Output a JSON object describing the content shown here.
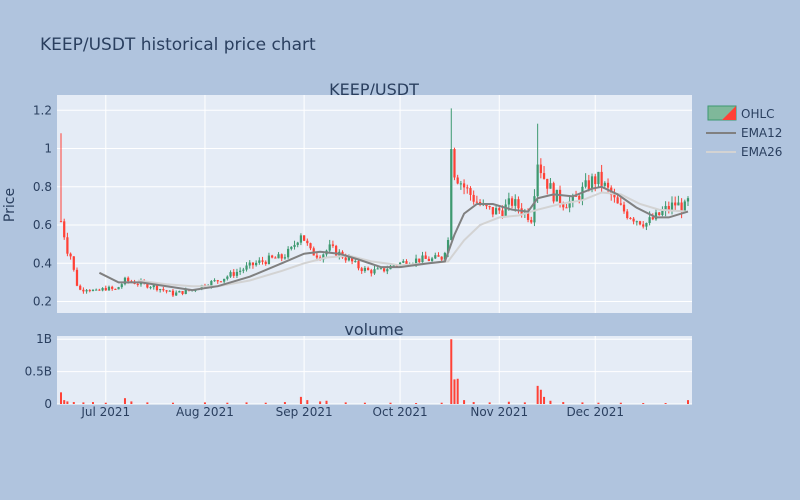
{
  "title": "KEEP/USDT historical price chart",
  "chart_data": [
    {
      "type": "candlestick",
      "subplot_title": "KEEP/USDT",
      "ylabel": "Price",
      "ylim": [
        0.14,
        1.28
      ],
      "y_ticks": [
        0.2,
        0.4,
        0.6,
        0.8,
        1,
        1.2
      ],
      "y_tick_labels": [
        "0.2",
        "0.4",
        "0.6",
        "0.8",
        "1",
        "1.2"
      ],
      "x_range": [
        "2021-06-17",
        "2021-12-30"
      ],
      "x_ticks": [
        "2021-07-01",
        "2021-08-01",
        "2021-09-01",
        "2021-10-01",
        "2021-11-01",
        "2021-12-01"
      ],
      "x_tick_labels": [
        "Jul 2021",
        "Aug 2021",
        "Sep 2021",
        "Oct 2021",
        "Nov 2021",
        "Dec 2021"
      ],
      "grid": true,
      "legend_position": "top-right",
      "colors": {
        "increasing": "#3d9970",
        "decreasing": "#ff4136",
        "ema12": "#808080",
        "ema26": "#d3d3d3"
      },
      "series": [
        {
          "name": "OHLC",
          "kind": "ohlc"
        },
        {
          "name": "EMA12",
          "kind": "line"
        },
        {
          "name": "EMA26",
          "kind": "line"
        }
      ],
      "daily_close": [
        [
          "2021-06-17",
          0.62
        ],
        [
          "2021-06-18",
          0.55
        ],
        [
          "2021-06-19",
          0.47
        ],
        [
          "2021-06-20",
          0.44
        ],
        [
          "2021-06-21",
          0.36
        ],
        [
          "2021-06-22",
          0.29
        ],
        [
          "2021-06-23",
          0.26
        ],
        [
          "2021-06-25",
          0.27
        ],
        [
          "2021-06-28",
          0.25
        ],
        [
          "2021-07-01",
          0.27
        ],
        [
          "2021-07-04",
          0.26
        ],
        [
          "2021-07-07",
          0.31
        ],
        [
          "2021-07-10",
          0.3
        ],
        [
          "2021-07-13",
          0.29
        ],
        [
          "2021-07-16",
          0.28
        ],
        [
          "2021-07-19",
          0.26
        ],
        [
          "2021-07-22",
          0.24
        ],
        [
          "2021-07-25",
          0.25
        ],
        [
          "2021-07-28",
          0.26
        ],
        [
          "2021-08-01",
          0.29
        ],
        [
          "2021-08-05",
          0.31
        ],
        [
          "2021-08-09",
          0.34
        ],
        [
          "2021-08-13",
          0.37
        ],
        [
          "2021-08-17",
          0.4
        ],
        [
          "2021-08-21",
          0.42
        ],
        [
          "2021-08-25",
          0.43
        ],
        [
          "2021-08-28",
          0.47
        ],
        [
          "2021-08-31",
          0.56
        ],
        [
          "2021-09-03",
          0.46
        ],
        [
          "2021-09-06",
          0.44
        ],
        [
          "2021-09-09",
          0.48
        ],
        [
          "2021-09-12",
          0.45
        ],
        [
          "2021-09-15",
          0.42
        ],
        [
          "2021-09-18",
          0.38
        ],
        [
          "2021-09-21",
          0.36
        ],
        [
          "2021-09-25",
          0.36
        ],
        [
          "2021-09-29",
          0.39
        ],
        [
          "2021-10-03",
          0.41
        ],
        [
          "2021-10-07",
          0.42
        ],
        [
          "2021-10-11",
          0.42
        ],
        [
          "2021-10-14",
          0.43
        ],
        [
          "2021-10-16",
          0.52
        ],
        [
          "2021-10-17",
          1.04
        ],
        [
          "2021-10-18",
          0.88
        ],
        [
          "2021-10-19",
          0.85
        ],
        [
          "2021-10-21",
          0.8
        ],
        [
          "2021-10-24",
          0.74
        ],
        [
          "2021-10-27",
          0.69
        ],
        [
          "2021-10-30",
          0.67
        ],
        [
          "2021-11-02",
          0.68
        ],
        [
          "2021-11-05",
          0.72
        ],
        [
          "2021-11-08",
          0.68
        ],
        [
          "2021-11-11",
          0.64
        ],
        [
          "2021-11-13",
          0.94
        ],
        [
          "2021-11-15",
          0.85
        ],
        [
          "2021-11-18",
          0.76
        ],
        [
          "2021-11-21",
          0.72
        ],
        [
          "2021-11-24",
          0.72
        ],
        [
          "2021-11-27",
          0.78
        ],
        [
          "2021-11-30",
          0.83
        ],
        [
          "2021-12-02",
          0.84
        ],
        [
          "2021-12-05",
          0.78
        ],
        [
          "2021-12-08",
          0.7
        ],
        [
          "2021-12-11",
          0.66
        ],
        [
          "2021-12-14",
          0.63
        ],
        [
          "2021-12-17",
          0.61
        ],
        [
          "2021-12-20",
          0.64
        ],
        [
          "2021-12-23",
          0.68
        ],
        [
          "2021-12-26",
          0.71
        ],
        [
          "2021-12-29",
          0.69
        ],
        [
          "2021-12-30",
          0.72
        ]
      ],
      "ema12": [
        [
          "2021-06-29",
          0.35
        ],
        [
          "2021-07-05",
          0.3
        ],
        [
          "2021-07-12",
          0.3
        ],
        [
          "2021-07-20",
          0.28
        ],
        [
          "2021-07-28",
          0.26
        ],
        [
          "2021-08-05",
          0.28
        ],
        [
          "2021-08-15",
          0.33
        ],
        [
          "2021-08-25",
          0.4
        ],
        [
          "2021-09-01",
          0.45
        ],
        [
          "2021-09-06",
          0.46
        ],
        [
          "2021-09-12",
          0.45
        ],
        [
          "2021-09-18",
          0.42
        ],
        [
          "2021-09-25",
          0.38
        ],
        [
          "2021-10-01",
          0.38
        ],
        [
          "2021-10-10",
          0.4
        ],
        [
          "2021-10-15",
          0.41
        ],
        [
          "2021-10-18",
          0.55
        ],
        [
          "2021-10-21",
          0.66
        ],
        [
          "2021-10-25",
          0.71
        ],
        [
          "2021-10-30",
          0.71
        ],
        [
          "2021-11-05",
          0.68
        ],
        [
          "2021-11-10",
          0.67
        ],
        [
          "2021-11-13",
          0.74
        ],
        [
          "2021-11-18",
          0.76
        ],
        [
          "2021-11-24",
          0.75
        ],
        [
          "2021-11-30",
          0.79
        ],
        [
          "2021-12-03",
          0.8
        ],
        [
          "2021-12-08",
          0.76
        ],
        [
          "2021-12-14",
          0.69
        ],
        [
          "2021-12-20",
          0.64
        ],
        [
          "2021-12-24",
          0.64
        ],
        [
          "2021-12-30",
          0.67
        ]
      ],
      "ema26": [
        [
          "2021-07-11",
          0.31
        ],
        [
          "2021-07-20",
          0.29
        ],
        [
          "2021-07-28",
          0.28
        ],
        [
          "2021-08-05",
          0.28
        ],
        [
          "2021-08-15",
          0.31
        ],
        [
          "2021-08-25",
          0.36
        ],
        [
          "2021-09-01",
          0.4
        ],
        [
          "2021-09-08",
          0.43
        ],
        [
          "2021-09-15",
          0.44
        ],
        [
          "2021-09-22",
          0.41
        ],
        [
          "2021-10-01",
          0.39
        ],
        [
          "2021-10-10",
          0.4
        ],
        [
          "2021-10-16",
          0.41
        ],
        [
          "2021-10-21",
          0.52
        ],
        [
          "2021-10-26",
          0.6
        ],
        [
          "2021-11-01",
          0.64
        ],
        [
          "2021-11-07",
          0.65
        ],
        [
          "2021-11-13",
          0.68
        ],
        [
          "2021-11-20",
          0.71
        ],
        [
          "2021-11-27",
          0.73
        ],
        [
          "2021-12-03",
          0.77
        ],
        [
          "2021-12-09",
          0.76
        ],
        [
          "2021-12-15",
          0.71
        ],
        [
          "2021-12-21",
          0.68
        ],
        [
          "2021-12-30",
          0.67
        ]
      ]
    },
    {
      "type": "bar",
      "subplot_title": "volume",
      "ylim": [
        0,
        1050000000
      ],
      "y_ticks": [
        0,
        500000000,
        1000000000
      ],
      "y_tick_labels": [
        "0",
        "0.5B",
        "1B"
      ],
      "color": "#ff4136",
      "grid": true,
      "points": [
        [
          "2021-06-17",
          180000000
        ],
        [
          "2021-06-18",
          60000000
        ],
        [
          "2021-06-19",
          40000000
        ],
        [
          "2021-06-21",
          30000000
        ],
        [
          "2021-06-24",
          25000000
        ],
        [
          "2021-06-27",
          30000000
        ],
        [
          "2021-07-01",
          20000000
        ],
        [
          "2021-07-07",
          90000000
        ],
        [
          "2021-07-09",
          40000000
        ],
        [
          "2021-07-14",
          25000000
        ],
        [
          "2021-07-22",
          20000000
        ],
        [
          "2021-08-01",
          25000000
        ],
        [
          "2021-08-08",
          20000000
        ],
        [
          "2021-08-14",
          25000000
        ],
        [
          "2021-08-20",
          20000000
        ],
        [
          "2021-08-26",
          30000000
        ],
        [
          "2021-08-31",
          110000000
        ],
        [
          "2021-09-02",
          60000000
        ],
        [
          "2021-09-06",
          40000000
        ],
        [
          "2021-09-08",
          50000000
        ],
        [
          "2021-09-14",
          25000000
        ],
        [
          "2021-09-20",
          20000000
        ],
        [
          "2021-09-28",
          20000000
        ],
        [
          "2021-10-06",
          15000000
        ],
        [
          "2021-10-14",
          20000000
        ],
        [
          "2021-10-17",
          1000000000
        ],
        [
          "2021-10-18",
          380000000
        ],
        [
          "2021-10-19",
          390000000
        ],
        [
          "2021-10-21",
          60000000
        ],
        [
          "2021-10-24",
          30000000
        ],
        [
          "2021-10-29",
          25000000
        ],
        [
          "2021-11-04",
          35000000
        ],
        [
          "2021-11-09",
          25000000
        ],
        [
          "2021-11-13",
          280000000
        ],
        [
          "2021-11-14",
          220000000
        ],
        [
          "2021-11-15",
          110000000
        ],
        [
          "2021-11-17",
          50000000
        ],
        [
          "2021-11-21",
          30000000
        ],
        [
          "2021-11-27",
          25000000
        ],
        [
          "2021-12-02",
          20000000
        ],
        [
          "2021-12-09",
          20000000
        ],
        [
          "2021-12-16",
          15000000
        ],
        [
          "2021-12-23",
          15000000
        ],
        [
          "2021-12-30",
          60000000
        ]
      ]
    }
  ]
}
